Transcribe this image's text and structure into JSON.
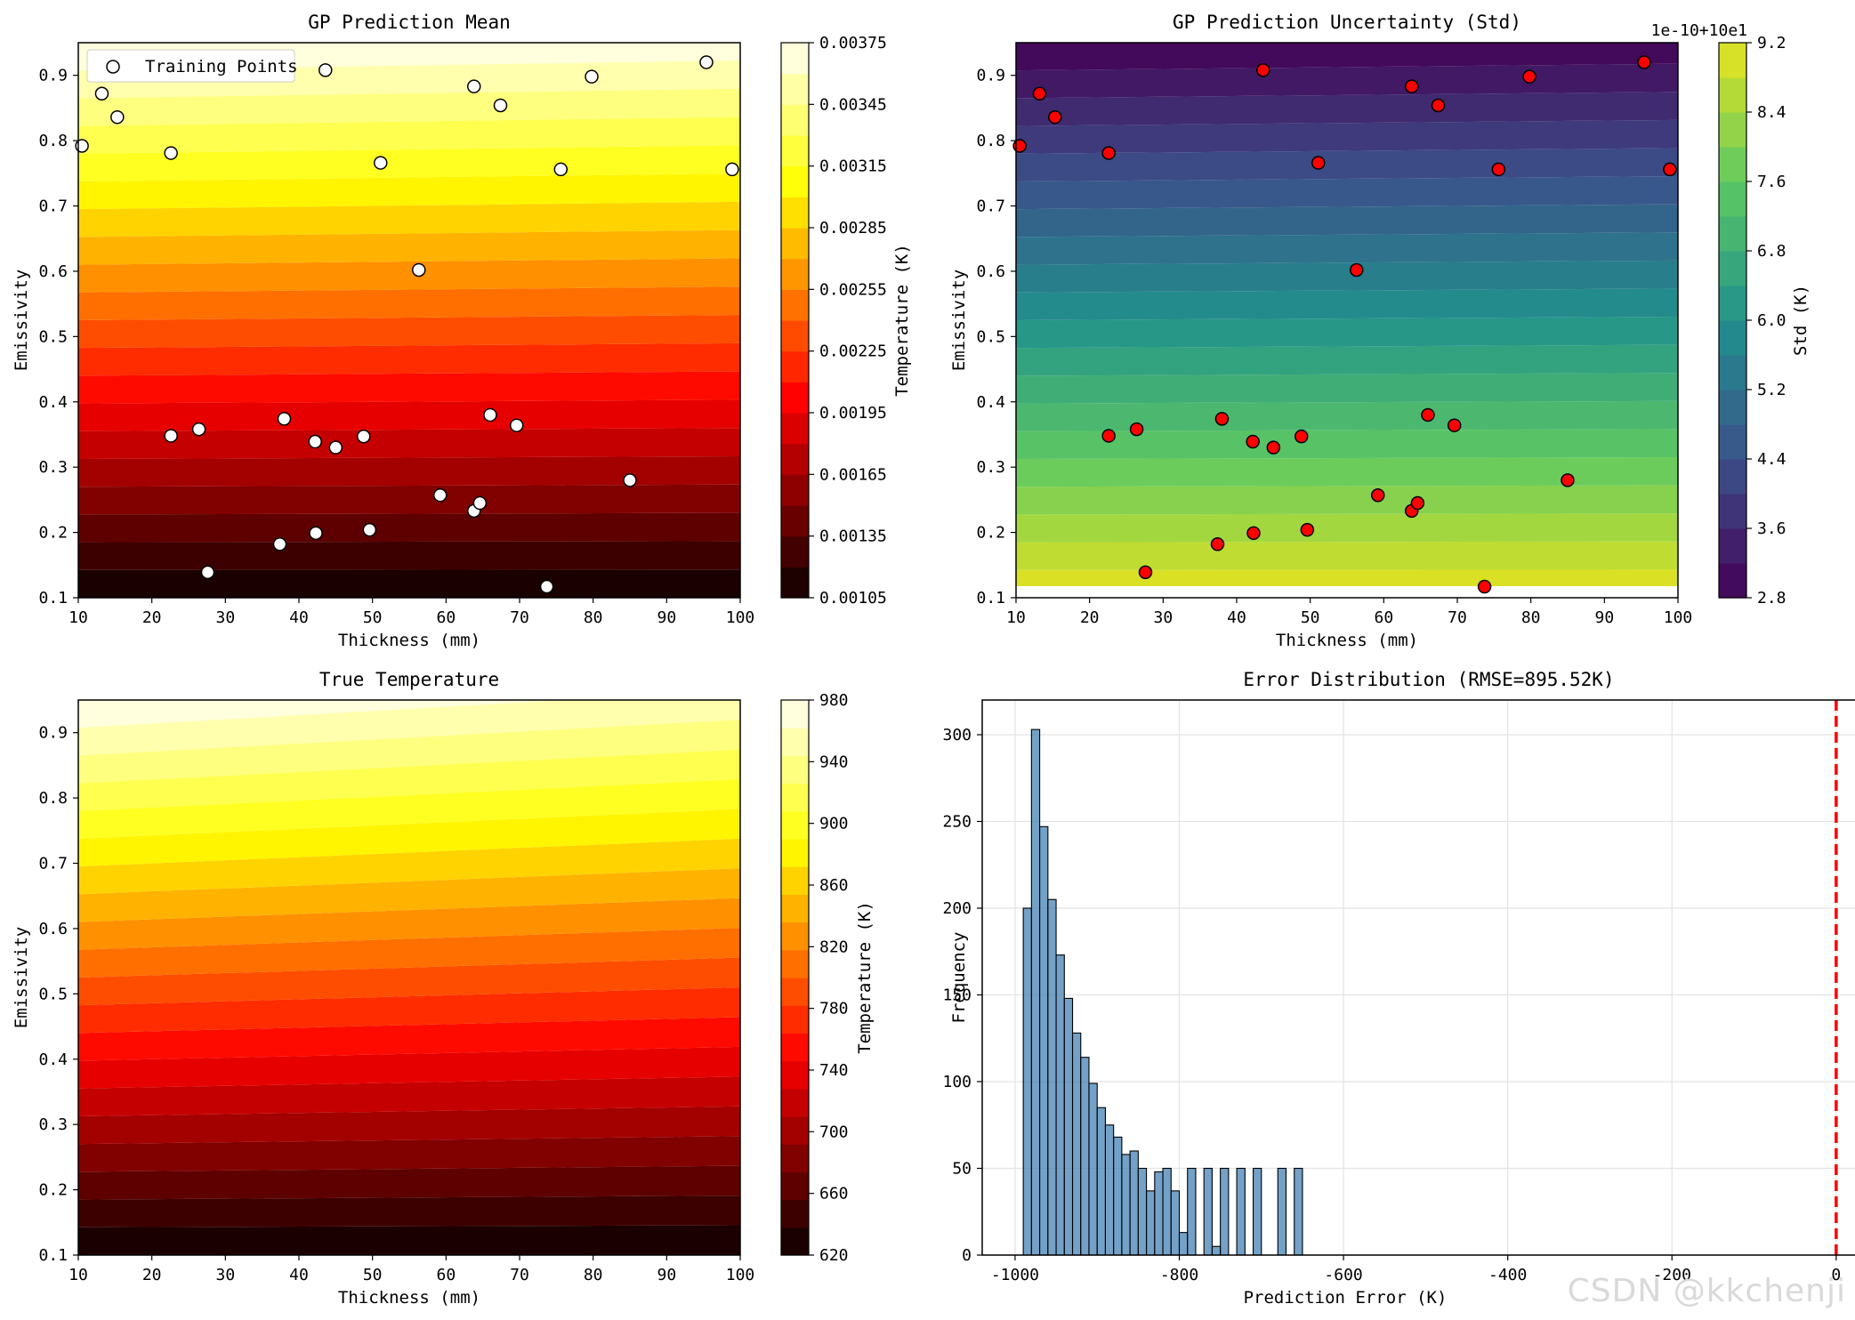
{
  "watermark": "CSDN @kkchenji",
  "chart_data": [
    {
      "type": "contour",
      "title": "GP Prediction Mean",
      "xlabel": "Thickness (mm)",
      "ylabel": "Emissivity",
      "xlim": [
        10,
        100
      ],
      "ylim": [
        0.1,
        0.95
      ],
      "xticks": [
        "10",
        "20",
        "30",
        "40",
        "50",
        "60",
        "70",
        "80",
        "90",
        "100"
      ],
      "yticks": [
        "0.1",
        "0.2",
        "0.3",
        "0.4",
        "0.5",
        "0.6",
        "0.7",
        "0.8",
        "0.9"
      ],
      "colormap": "hot",
      "colorbar": {
        "label": "Temperature (K)",
        "ticks": [
          "0.00105",
          "0.00135",
          "0.00165",
          "0.00195",
          "0.00225",
          "0.00255",
          "0.00285",
          "0.00315",
          "0.00345",
          "0.00375"
        ]
      },
      "legend": {
        "entries": [
          "Training Points"
        ],
        "placement": "upper-left"
      },
      "marker": {
        "fill": "#ffffff",
        "edge": "#000000"
      },
      "points": [
        {
          "x": 10.5,
          "y": 0.792
        },
        {
          "x": 13.2,
          "y": 0.872
        },
        {
          "x": 15.3,
          "y": 0.836
        },
        {
          "x": 22.6,
          "y": 0.781
        },
        {
          "x": 43.6,
          "y": 0.908
        },
        {
          "x": 63.8,
          "y": 0.883
        },
        {
          "x": 67.4,
          "y": 0.854
        },
        {
          "x": 79.8,
          "y": 0.898
        },
        {
          "x": 95.4,
          "y": 0.92
        },
        {
          "x": 51.1,
          "y": 0.766
        },
        {
          "x": 75.6,
          "y": 0.756
        },
        {
          "x": 98.9,
          "y": 0.756
        },
        {
          "x": 56.3,
          "y": 0.602
        },
        {
          "x": 22.6,
          "y": 0.348
        },
        {
          "x": 26.4,
          "y": 0.358
        },
        {
          "x": 38.0,
          "y": 0.374
        },
        {
          "x": 42.2,
          "y": 0.339
        },
        {
          "x": 45.0,
          "y": 0.33
        },
        {
          "x": 48.8,
          "y": 0.347
        },
        {
          "x": 66.0,
          "y": 0.38
        },
        {
          "x": 69.6,
          "y": 0.364
        },
        {
          "x": 85.0,
          "y": 0.28
        },
        {
          "x": 59.2,
          "y": 0.257
        },
        {
          "x": 63.8,
          "y": 0.233
        },
        {
          "x": 64.6,
          "y": 0.245
        },
        {
          "x": 37.4,
          "y": 0.182
        },
        {
          "x": 42.3,
          "y": 0.199
        },
        {
          "x": 49.6,
          "y": 0.204
        },
        {
          "x": 27.6,
          "y": 0.139
        },
        {
          "x": 73.7,
          "y": 0.117
        }
      ]
    },
    {
      "type": "contour",
      "title": "GP Prediction Uncertainty (Std)",
      "xlabel": "Thickness (mm)",
      "ylabel": "Emissivity",
      "xlim": [
        10,
        100
      ],
      "ylim": [
        0.1,
        0.95
      ],
      "xticks": [
        "10",
        "20",
        "30",
        "40",
        "50",
        "60",
        "70",
        "80",
        "90",
        "100"
      ],
      "yticks": [
        "0.1",
        "0.2",
        "0.3",
        "0.4",
        "0.5",
        "0.6",
        "0.7",
        "0.8",
        "0.9"
      ],
      "colormap": "viridis",
      "colorbar": {
        "label": "Std (K)",
        "offset_text": "1e-10+10e1",
        "ticks": [
          "2.8",
          "3.6",
          "4.4",
          "5.2",
          "6.0",
          "6.8",
          "7.6",
          "8.4",
          "9.2"
        ]
      },
      "marker": {
        "fill": "#ff0000",
        "edge": "#000000"
      },
      "points_ref": 0
    },
    {
      "type": "contour",
      "title": "True Temperature",
      "xlabel": "Thickness (mm)",
      "ylabel": "Emissivity",
      "xlim": [
        10,
        100
      ],
      "ylim": [
        0.1,
        0.95
      ],
      "xticks": [
        "10",
        "20",
        "30",
        "40",
        "50",
        "60",
        "70",
        "80",
        "90",
        "100"
      ],
      "yticks": [
        "0.1",
        "0.2",
        "0.3",
        "0.4",
        "0.5",
        "0.6",
        "0.7",
        "0.8",
        "0.9"
      ],
      "colormap": "hot",
      "colorbar": {
        "label": "Temperature (K)",
        "ticks": [
          "620",
          "660",
          "700",
          "740",
          "780",
          "820",
          "860",
          "900",
          "940",
          "980"
        ]
      }
    },
    {
      "type": "bar",
      "title": "Error Distribution (RMSE=895.52K)",
      "xlabel": "Prediction Error (K)",
      "ylabel": "Frequency",
      "xlim": [
        -1040,
        50
      ],
      "ylim": [
        0,
        320
      ],
      "xticks": [
        "-1000",
        "-800",
        "-600",
        "-400",
        "-200",
        "0"
      ],
      "yticks": [
        "0",
        "50",
        "100",
        "150",
        "200",
        "250",
        "300"
      ],
      "grid": true,
      "bar_color": "#4682b4",
      "reference_line": {
        "x": 0,
        "color": "#ff0000",
        "style": "dashed"
      },
      "bin_start": -990,
      "bin_width": 10,
      "values": [
        200,
        303,
        247,
        205,
        173,
        148,
        128,
        114,
        99,
        85,
        75,
        68,
        58,
        60,
        50,
        37,
        48,
        50,
        37,
        13,
        50,
        0,
        50,
        5,
        50,
        0,
        50,
        0,
        50,
        0,
        0,
        50,
        0,
        50
      ]
    }
  ]
}
